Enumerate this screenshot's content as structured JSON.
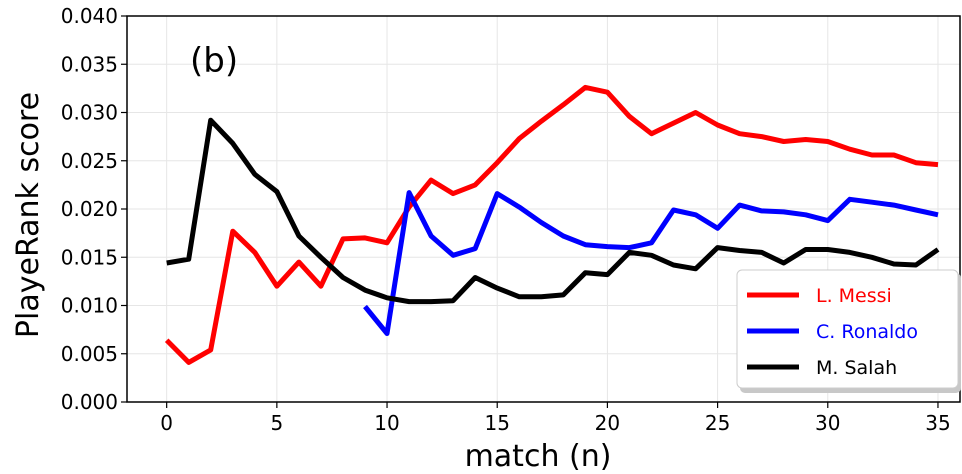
{
  "chart_data": {
    "type": "line",
    "panel_label": "(b)",
    "xlabel": "match (n)",
    "ylabel": "PlayeRank score",
    "xlim": [
      -1.8,
      36
    ],
    "ylim": [
      0,
      0.04
    ],
    "xticks": [
      0,
      5,
      10,
      15,
      20,
      25,
      30,
      35
    ],
    "xtick_labels": [
      "0",
      "5",
      "10",
      "15",
      "20",
      "25",
      "30",
      "35"
    ],
    "yticks": [
      0,
      0.005,
      0.01,
      0.015,
      0.02,
      0.025,
      0.03,
      0.035,
      0.04
    ],
    "ytick_labels": [
      "0.000",
      "0.005",
      "0.010",
      "0.015",
      "0.020",
      "0.025",
      "0.030",
      "0.035",
      "0.040"
    ],
    "grid": true,
    "legend_position": "lower-right",
    "series": [
      {
        "name": "L. Messi",
        "color": "#ff0000",
        "x": [
          0,
          1,
          2,
          3,
          4,
          5,
          6,
          7,
          8,
          9,
          10,
          11,
          12,
          13,
          14,
          15,
          16,
          17,
          18,
          19,
          20,
          21,
          22,
          23,
          24,
          25,
          26,
          27,
          28,
          29,
          30,
          31,
          32,
          33,
          34,
          35
        ],
        "y": [
          0.0064,
          0.0041,
          0.0054,
          0.0177,
          0.0155,
          0.012,
          0.0145,
          0.012,
          0.0169,
          0.017,
          0.0165,
          0.0202,
          0.023,
          0.0216,
          0.0225,
          0.0248,
          0.0273,
          0.0291,
          0.0308,
          0.0326,
          0.0321,
          0.0296,
          0.0278,
          0.0289,
          0.03,
          0.0287,
          0.0278,
          0.0275,
          0.027,
          0.0272,
          0.027,
          0.0262,
          0.0256,
          0.0256,
          0.0248,
          0.0246
        ]
      },
      {
        "name": "C. Ronaldo",
        "color": "#0000ff",
        "x": [
          9,
          10,
          11,
          12,
          13,
          14,
          15,
          16,
          17,
          18,
          19,
          20,
          21,
          22,
          23,
          24,
          25,
          26,
          27,
          28,
          29,
          30,
          31,
          32,
          33,
          34,
          35
        ],
        "y": [
          0.0099,
          0.0071,
          0.0217,
          0.0172,
          0.0152,
          0.0159,
          0.0216,
          0.0202,
          0.0186,
          0.0172,
          0.0163,
          0.0161,
          0.016,
          0.0165,
          0.0199,
          0.0194,
          0.018,
          0.0204,
          0.0198,
          0.0197,
          0.0194,
          0.0188,
          0.021,
          0.0207,
          0.0204,
          0.0199,
          0.0194
        ]
      },
      {
        "name": "M. Salah",
        "color": "#000000",
        "x": [
          0,
          1,
          2,
          3,
          4,
          5,
          6,
          7,
          8,
          9,
          10,
          11,
          12,
          13,
          14,
          15,
          16,
          17,
          18,
          19,
          20,
          21,
          22,
          23,
          24,
          25,
          26,
          27,
          28,
          29,
          30,
          31,
          32,
          33,
          34,
          35
        ],
        "y": [
          0.0144,
          0.0148,
          0.0292,
          0.0268,
          0.0236,
          0.0218,
          0.0172,
          0.015,
          0.0129,
          0.0116,
          0.0108,
          0.0104,
          0.0104,
          0.0105,
          0.0129,
          0.0118,
          0.0109,
          0.0109,
          0.0111,
          0.0134,
          0.0132,
          0.0155,
          0.0152,
          0.0142,
          0.0138,
          0.016,
          0.0157,
          0.0155,
          0.0144,
          0.0158,
          0.0158,
          0.0155,
          0.015,
          0.0143,
          0.0142,
          0.0158
        ]
      }
    ]
  }
}
